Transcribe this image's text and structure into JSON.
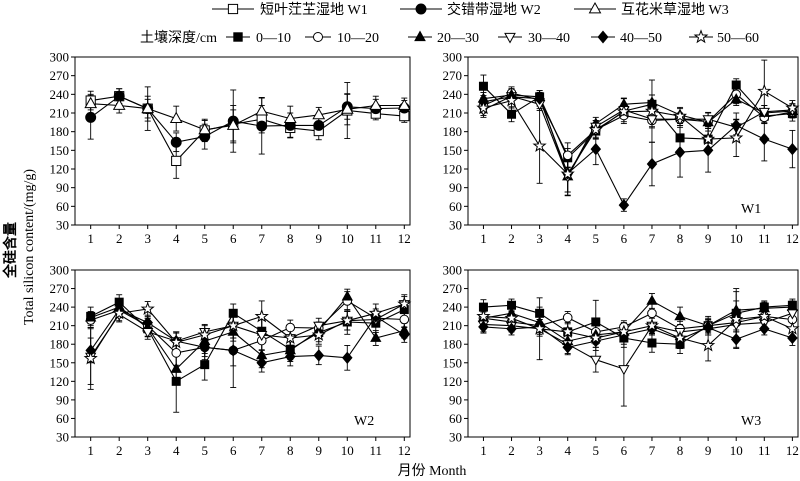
{
  "legend": {
    "depth_title": "土壤深度/cm"
  },
  "axes": {
    "ylabel_cn": "全硅含量",
    "ylabel_en": "Total silicon content/(mg/g)",
    "xlabel": "月份 Month"
  },
  "colors": {
    "line": "#000000",
    "open_fill": "#ffffff",
    "filled_fill": "#000000"
  },
  "chart_data": [
    {
      "type": "line",
      "x": [
        1,
        2,
        3,
        4,
        5,
        6,
        7,
        8,
        9,
        10,
        11,
        12
      ],
      "xlim": [
        0.45,
        12.2
      ],
      "ylim": [
        30,
        300
      ],
      "yticks": [
        30,
        60,
        90,
        120,
        150,
        180,
        210,
        240,
        270,
        300
      ],
      "grid": false,
      "error_bars": true,
      "series": [
        {
          "name": "短叶茳芏湿地 W1",
          "marker": "open-square",
          "values": [
            230,
            237,
            217,
            133,
            182,
            192,
            200,
            186,
            181,
            214,
            209,
            205
          ],
          "error": [
            15,
            12,
            20,
            28,
            18,
            30,
            22,
            15,
            14,
            45,
            10,
            10
          ]
        },
        {
          "name": "交错带湿地 W2",
          "marker": "filled-circle",
          "values": [
            203,
            237,
            217,
            163,
            172,
            197,
            189,
            190,
            190,
            220,
            217,
            218
          ],
          "error": [
            35,
            12,
            15,
            15,
            20,
            50,
            45,
            20,
            12,
            20,
            15,
            12
          ]
        },
        {
          "name": "互花米草湿地 W3",
          "marker": "open-triangle-up",
          "values": [
            225,
            222,
            217,
            201,
            183,
            190,
            213,
            201,
            207,
            216,
            222,
            222
          ],
          "error": [
            15,
            12,
            35,
            20,
            15,
            25,
            22,
            20,
            12,
            25,
            15,
            12
          ]
        }
      ]
    },
    {
      "type": "line",
      "panel_label": "W1",
      "x": [
        1,
        2,
        3,
        4,
        5,
        6,
        7,
        8,
        9,
        10,
        11,
        12
      ],
      "xlim": [
        0.45,
        12.2
      ],
      "ylim": [
        30,
        300
      ],
      "yticks": [
        30,
        60,
        90,
        120,
        150,
        180,
        210,
        240,
        270,
        300
      ],
      "grid": false,
      "error_bars": true,
      "series": [
        {
          "name": "0—10",
          "marker": "filled-square",
          "values": [
            253,
            208,
            236,
            138,
            181,
            213,
            224,
            170,
            168,
            255,
            205,
            209
          ],
          "error": [
            18,
            12,
            10,
            15,
            12,
            20,
            15,
            25,
            20,
            10,
            12,
            12
          ]
        },
        {
          "name": "10—20",
          "marker": "open-circle",
          "values": [
            222,
            242,
            231,
            142,
            183,
            206,
            198,
            200,
            196,
            240,
            203,
            212
          ],
          "error": [
            12,
            10,
            10,
            20,
            15,
            10,
            12,
            10,
            15,
            15,
            10,
            10
          ]
        },
        {
          "name": "20—30",
          "marker": "filled-triangle-up",
          "values": [
            233,
            239,
            236,
            108,
            193,
            224,
            227,
            207,
            195,
            232,
            210,
            213
          ],
          "error": [
            10,
            10,
            10,
            25,
            10,
            10,
            12,
            12,
            10,
            10,
            12,
            10
          ]
        },
        {
          "name": "30—40",
          "marker": "open-triangle-down",
          "values": [
            215,
            237,
            224,
            108,
            188,
            215,
            200,
            200,
            200,
            187,
            212,
            215
          ],
          "error": [
            12,
            12,
            10,
            30,
            10,
            10,
            12,
            10,
            10,
            12,
            10,
            10
          ]
        },
        {
          "name": "40—50",
          "marker": "filled-diamond",
          "values": [
            228,
            236,
            233,
            113,
            152,
            62,
            128,
            147,
            150,
            190,
            168,
            152
          ],
          "error": [
            10,
            10,
            10,
            30,
            25,
            10,
            35,
            40,
            35,
            20,
            35,
            30
          ]
        },
        {
          "name": "50—60",
          "marker": "open-star",
          "values": [
            218,
            230,
            157,
            112,
            183,
            212,
            213,
            205,
            168,
            170,
            245,
            218
          ],
          "error": [
            12,
            12,
            60,
            35,
            12,
            10,
            50,
            12,
            20,
            30,
            50,
            12
          ]
        }
      ]
    },
    {
      "type": "line",
      "panel_label": "W2",
      "x": [
        1,
        2,
        3,
        4,
        5,
        6,
        7,
        8,
        9,
        10,
        11,
        12
      ],
      "xlim": [
        0.45,
        12.2
      ],
      "ylim": [
        30,
        300
      ],
      "yticks": [
        30,
        60,
        90,
        120,
        150,
        180,
        210,
        240,
        270,
        300
      ],
      "grid": false,
      "error_bars": true,
      "series": [
        {
          "name": "0—10",
          "marker": "filled-square",
          "values": [
            225,
            248,
            205,
            120,
            147,
            230,
            201,
            172,
            199,
            216,
            214,
            236
          ],
          "error": [
            15,
            12,
            12,
            50,
            25,
            15,
            20,
            20,
            15,
            20,
            15,
            12
          ]
        },
        {
          "name": "10—20",
          "marker": "open-circle",
          "values": [
            219,
            235,
            210,
            166,
            175,
            170,
            186,
            207,
            206,
            250,
            222,
            220
          ],
          "error": [
            12,
            12,
            12,
            20,
            20,
            25,
            15,
            12,
            10,
            15,
            12,
            12
          ]
        },
        {
          "name": "20—30",
          "marker": "filled-triangle-up",
          "values": [
            223,
            240,
            207,
            140,
            185,
            200,
            162,
            170,
            202,
            257,
            190,
            202
          ],
          "error": [
            10,
            12,
            15,
            25,
            20,
            15,
            20,
            15,
            12,
            12,
            12,
            12
          ]
        },
        {
          "name": "30—40",
          "marker": "open-triangle-down",
          "values": [
            160,
            228,
            200,
            185,
            200,
            210,
            195,
            190,
            210,
            218,
            220,
            245
          ],
          "error": [
            45,
            12,
            12,
            15,
            12,
            20,
            25,
            20,
            12,
            15,
            12,
            15
          ]
        },
        {
          "name": "40—50",
          "marker": "filled-diamond",
          "values": [
            170,
            236,
            215,
            185,
            175,
            170,
            150,
            160,
            162,
            158,
            225,
            195
          ],
          "error": [
            20,
            12,
            12,
            15,
            15,
            60,
            15,
            15,
            15,
            20,
            12,
            12
          ]
        },
        {
          "name": "50—60",
          "marker": "open-star",
          "values": [
            157,
            230,
            237,
            183,
            195,
            210,
            225,
            190,
            195,
            218,
            230,
            245
          ],
          "error": [
            50,
            12,
            12,
            15,
            15,
            20,
            25,
            20,
            15,
            15,
            15,
            12
          ]
        }
      ]
    },
    {
      "type": "line",
      "panel_label": "W3",
      "x": [
        1,
        2,
        3,
        4,
        5,
        6,
        7,
        8,
        9,
        10,
        11,
        12
      ],
      "xlim": [
        0.45,
        12.2
      ],
      "ylim": [
        30,
        300
      ],
      "yticks": [
        30,
        60,
        90,
        120,
        150,
        180,
        210,
        240,
        270,
        300
      ],
      "grid": false,
      "error_bars": true,
      "series": [
        {
          "name": "0—10",
          "marker": "filled-square",
          "values": [
            240,
            243,
            230,
            200,
            216,
            190,
            182,
            180,
            210,
            230,
            240,
            243
          ],
          "error": [
            12,
            10,
            10,
            20,
            35,
            15,
            15,
            15,
            15,
            40,
            10,
            10
          ]
        },
        {
          "name": "10—20",
          "marker": "open-circle",
          "values": [
            222,
            216,
            210,
            223,
            200,
            208,
            230,
            205,
            210,
            215,
            225,
            220
          ],
          "error": [
            10,
            12,
            10,
            10,
            15,
            10,
            15,
            12,
            10,
            15,
            10,
            12
          ]
        },
        {
          "name": "20—30",
          "marker": "filled-triangle-up",
          "values": [
            222,
            230,
            215,
            185,
            195,
            200,
            250,
            225,
            210,
            235,
            238,
            240
          ],
          "error": [
            12,
            10,
            10,
            12,
            15,
            10,
            12,
            15,
            12,
            15,
            10,
            10
          ]
        },
        {
          "name": "30—40",
          "marker": "open-triangle-down",
          "values": [
            212,
            210,
            205,
            180,
            155,
            140,
            210,
            200,
            205,
            212,
            215,
            230
          ],
          "error": [
            12,
            10,
            50,
            15,
            20,
            60,
            15,
            12,
            10,
            12,
            10,
            12
          ]
        },
        {
          "name": "40—50",
          "marker": "filled-diamond",
          "values": [
            208,
            205,
            208,
            175,
            185,
            195,
            205,
            188,
            207,
            188,
            205,
            190
          ],
          "error": [
            10,
            10,
            12,
            12,
            15,
            15,
            10,
            15,
            12,
            15,
            10,
            12
          ]
        },
        {
          "name": "50—60",
          "marker": "open-star",
          "values": [
            225,
            222,
            205,
            200,
            190,
            200,
            210,
            190,
            178,
            220,
            225,
            205
          ],
          "error": [
            12,
            12,
            12,
            15,
            15,
            15,
            12,
            15,
            25,
            45,
            12,
            12
          ]
        }
      ]
    }
  ]
}
